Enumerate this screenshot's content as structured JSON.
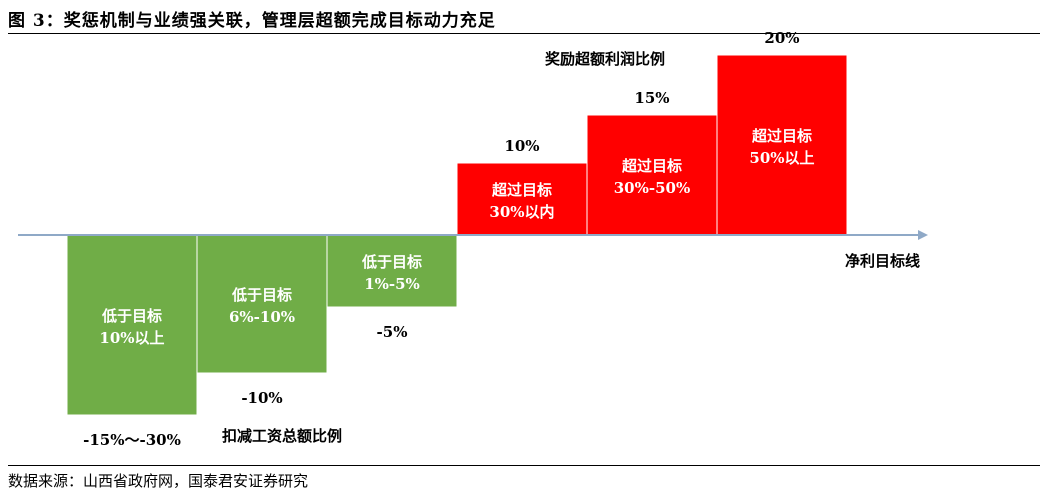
{
  "title": "图 3：奖惩机制与业绩强关联，管理层超额完成目标动力充足",
  "source": "数据来源：山西省政府网，国泰君安证券研究",
  "chart_data": {
    "type": "bar",
    "baseline_label": "净利目标线",
    "positive_axis_label": "奖励超额利润比例",
    "negative_axis_label": "扣减工资总额比例",
    "categories": [
      [
        "低于目标",
        "10%以上"
      ],
      [
        "低于目标",
        "6%-10%"
      ],
      [
        "低于目标",
        "1%-5%"
      ],
      [
        "超过目标",
        "30%以内"
      ],
      [
        "超过目标",
        "30%-50%"
      ],
      [
        "超过目标",
        "50%以上"
      ]
    ],
    "values": [
      -30,
      -23,
      -12,
      12,
      20,
      30
    ],
    "value_labels": [
      "-15%～-30%",
      "-10%",
      "-5%",
      "10%",
      "15%",
      "20%"
    ],
    "colors": {
      "negative": "#70ad47",
      "positive": "#ff0000",
      "baseline": "#8fa9c7"
    }
  }
}
